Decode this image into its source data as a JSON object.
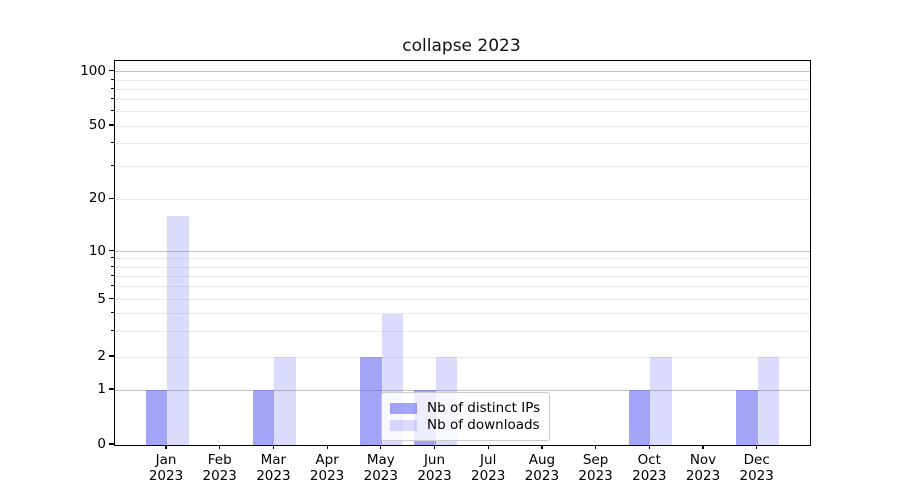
{
  "title": "collapse 2023",
  "legend": {
    "items": [
      {
        "label": "Nb of distinct IPs",
        "series_key": "ips"
      },
      {
        "label": "Nb of downloads",
        "series_key": "downloads"
      }
    ],
    "position": "lower center inside plot"
  },
  "chart_data": {
    "type": "bar",
    "title": "collapse 2023",
    "categories": [
      "Jan",
      "Feb",
      "Mar",
      "Apr",
      "May",
      "Jun",
      "Jul",
      "Aug",
      "Sep",
      "Oct",
      "Nov",
      "Dec"
    ],
    "category_year": "2023",
    "series": [
      {
        "name": "Nb of distinct IPs",
        "values": [
          1,
          0,
          1,
          0,
          2,
          1,
          0,
          0,
          0,
          1,
          0,
          1
        ],
        "color": "rgba(90,90,240,0.55)"
      },
      {
        "name": "Nb of downloads",
        "values": [
          16,
          0,
          2,
          0,
          4,
          2,
          0,
          0,
          0,
          2,
          0,
          2
        ],
        "color": "rgba(90,90,240,0.22)"
      }
    ],
    "xlabel": "",
    "ylabel": "",
    "yscale": "symlog-like",
    "ytick_values": [
      0,
      1,
      2,
      5,
      10,
      20,
      50,
      100
    ],
    "ytick_labels": [
      "0",
      "1",
      "2",
      "5",
      "10",
      "20",
      "50",
      "100"
    ],
    "ylim": [
      0,
      110
    ],
    "grid": {
      "major_values": [
        1,
        10,
        100
      ],
      "minor_values": [
        2,
        3,
        4,
        5,
        6,
        7,
        8,
        9,
        20,
        30,
        40,
        50,
        60,
        70,
        80,
        90
      ],
      "major_color": "#c4c4c4",
      "minor_color": "#eaeaea"
    },
    "legend_entries": [
      "Nb of distinct IPs",
      "Nb of downloads"
    ]
  },
  "colors": {
    "bar_ips": "rgba(90,90,240,0.55)",
    "bar_downloads": "rgba(90,90,240,0.22)",
    "axis": "#000000",
    "background": "#ffffff"
  }
}
